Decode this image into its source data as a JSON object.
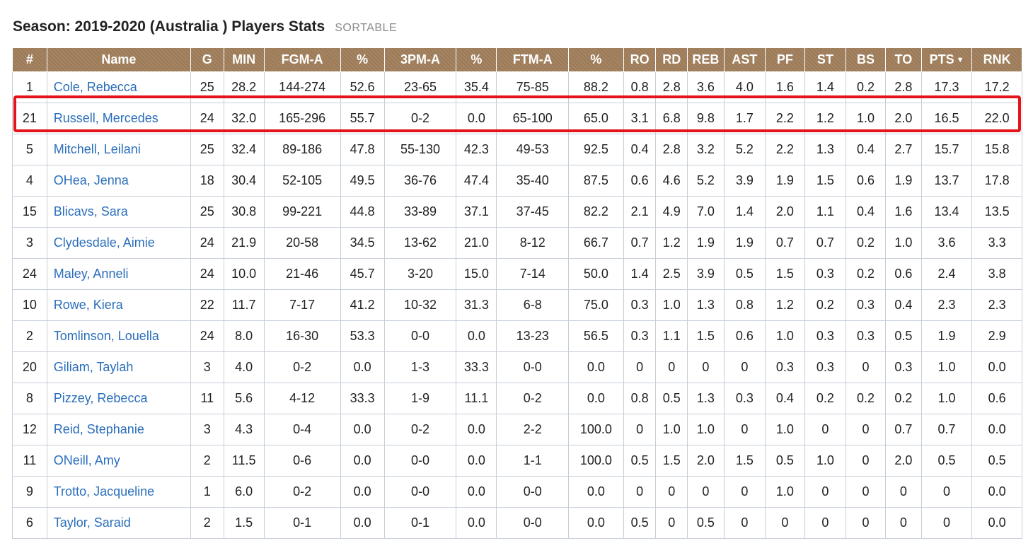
{
  "page": {
    "title": "Season: 2019-2020 (Australia ) Players Stats",
    "sortable_label": "SORTABLE"
  },
  "table": {
    "headers": [
      "#",
      "Name",
      "G",
      "MIN",
      "FGM-A",
      "%",
      "3PM-A",
      "%",
      "FTM-A",
      "%",
      "RO",
      "RD",
      "REB",
      "AST",
      "PF",
      "ST",
      "BS",
      "TO",
      "PTS",
      "RNK"
    ],
    "sorted_column": "PTS",
    "sort_indicator": "▼",
    "highlighted_row": "Russell, Mercedes",
    "highlight_color": "#e3141a",
    "header_bg": "#a07e5b",
    "link_color": "#2a6ebb",
    "rows": [
      [
        "1",
        "Cole, Rebecca",
        "25",
        "28.2",
        "144-274",
        "52.6",
        "23-65",
        "35.4",
        "75-85",
        "88.2",
        "0.8",
        "2.8",
        "3.6",
        "4.0",
        "1.6",
        "1.4",
        "0.2",
        "2.8",
        "17.3",
        "17.2"
      ],
      [
        "21",
        "Russell, Mercedes",
        "24",
        "32.0",
        "165-296",
        "55.7",
        "0-2",
        "0.0",
        "65-100",
        "65.0",
        "3.1",
        "6.8",
        "9.8",
        "1.7",
        "2.2",
        "1.2",
        "1.0",
        "2.0",
        "16.5",
        "22.0"
      ],
      [
        "5",
        "Mitchell, Leilani",
        "25",
        "32.4",
        "89-186",
        "47.8",
        "55-130",
        "42.3",
        "49-53",
        "92.5",
        "0.4",
        "2.8",
        "3.2",
        "5.2",
        "2.2",
        "1.3",
        "0.4",
        "2.7",
        "15.7",
        "15.8"
      ],
      [
        "4",
        "OHea, Jenna",
        "18",
        "30.4",
        "52-105",
        "49.5",
        "36-76",
        "47.4",
        "35-40",
        "87.5",
        "0.6",
        "4.6",
        "5.2",
        "3.9",
        "1.9",
        "1.5",
        "0.6",
        "1.9",
        "13.7",
        "17.8"
      ],
      [
        "15",
        "Blicavs, Sara",
        "25",
        "30.8",
        "99-221",
        "44.8",
        "33-89",
        "37.1",
        "37-45",
        "82.2",
        "2.1",
        "4.9",
        "7.0",
        "1.4",
        "2.0",
        "1.1",
        "0.4",
        "1.6",
        "13.4",
        "13.5"
      ],
      [
        "3",
        "Clydesdale, Aimie",
        "24",
        "21.9",
        "20-58",
        "34.5",
        "13-62",
        "21.0",
        "8-12",
        "66.7",
        "0.7",
        "1.2",
        "1.9",
        "1.9",
        "0.7",
        "0.7",
        "0.2",
        "1.0",
        "3.6",
        "3.3"
      ],
      [
        "24",
        "Maley, Anneli",
        "24",
        "10.0",
        "21-46",
        "45.7",
        "3-20",
        "15.0",
        "7-14",
        "50.0",
        "1.4",
        "2.5",
        "3.9",
        "0.5",
        "1.5",
        "0.3",
        "0.2",
        "0.6",
        "2.4",
        "3.8"
      ],
      [
        "10",
        "Rowe, Kiera",
        "22",
        "11.7",
        "7-17",
        "41.2",
        "10-32",
        "31.3",
        "6-8",
        "75.0",
        "0.3",
        "1.0",
        "1.3",
        "0.8",
        "1.2",
        "0.2",
        "0.3",
        "0.4",
        "2.3",
        "2.3"
      ],
      [
        "2",
        "Tomlinson, Louella",
        "24",
        "8.0",
        "16-30",
        "53.3",
        "0-0",
        "0.0",
        "13-23",
        "56.5",
        "0.3",
        "1.1",
        "1.5",
        "0.6",
        "1.0",
        "0.3",
        "0.3",
        "0.5",
        "1.9",
        "2.9"
      ],
      [
        "20",
        "Giliam, Taylah",
        "3",
        "4.0",
        "0-2",
        "0.0",
        "1-3",
        "33.3",
        "0-0",
        "0.0",
        "0",
        "0",
        "0",
        "0",
        "0.3",
        "0.3",
        "0",
        "0.3",
        "1.0",
        "0.0"
      ],
      [
        "8",
        "Pizzey, Rebecca",
        "11",
        "5.6",
        "4-12",
        "33.3",
        "1-9",
        "11.1",
        "0-2",
        "0.0",
        "0.8",
        "0.5",
        "1.3",
        "0.3",
        "0.4",
        "0.2",
        "0.2",
        "0.2",
        "1.0",
        "0.6"
      ],
      [
        "12",
        "Reid, Stephanie",
        "3",
        "4.3",
        "0-4",
        "0.0",
        "0-2",
        "0.0",
        "2-2",
        "100.0",
        "0",
        "1.0",
        "1.0",
        "0",
        "1.0",
        "0",
        "0",
        "0.7",
        "0.7",
        "0.0"
      ],
      [
        "11",
        "ONeill, Amy",
        "2",
        "11.5",
        "0-6",
        "0.0",
        "0-0",
        "0.0",
        "1-1",
        "100.0",
        "0.5",
        "1.5",
        "2.0",
        "1.5",
        "0.5",
        "1.0",
        "0",
        "2.0",
        "0.5",
        "0.5"
      ],
      [
        "9",
        "Trotto, Jacqueline",
        "1",
        "6.0",
        "0-2",
        "0.0",
        "0-0",
        "0.0",
        "0-0",
        "0.0",
        "0",
        "0",
        "0",
        "0",
        "1.0",
        "0",
        "0",
        "0",
        "0",
        "0.0"
      ],
      [
        "6",
        "Taylor, Saraid",
        "2",
        "1.5",
        "0-1",
        "0.0",
        "0-1",
        "0.0",
        "0-0",
        "0.0",
        "0.5",
        "0",
        "0.5",
        "0",
        "0",
        "0",
        "0",
        "0",
        "0",
        "0.0"
      ]
    ]
  }
}
